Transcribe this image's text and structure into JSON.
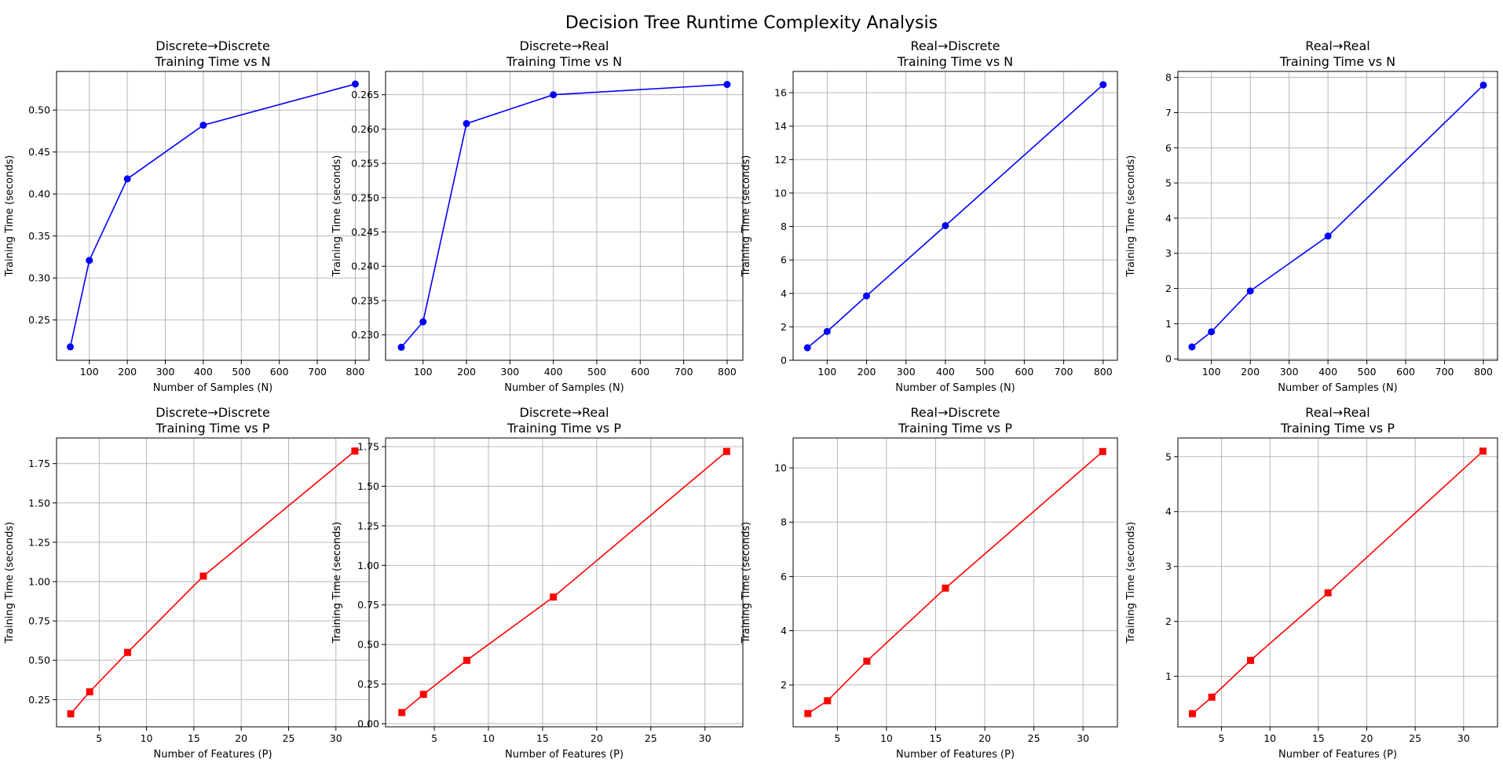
{
  "figure_title": "Decision Tree Runtime Complexity Analysis",
  "chart_data": [
    {
      "type": "line",
      "title": [
        "Discrete→Discrete",
        "Training Time vs N"
      ],
      "xlabel": "Number of Samples (N)",
      "ylabel": "Training Time (seconds)",
      "xlim": [
        13.75,
        836.25
      ],
      "ylim": [
        0.202,
        0.546
      ],
      "xticks": [
        100,
        200,
        300,
        400,
        500,
        600,
        700,
        800
      ],
      "yticks": [
        0.25,
        0.3,
        0.35,
        0.4,
        0.45,
        0.5
      ],
      "tick_decimals": 2,
      "grid": true,
      "color": "#0000ff",
      "marker": "circle",
      "series": [
        {
          "x": [
            50,
            100,
            200,
            400,
            800
          ],
          "y": [
            0.218,
            0.321,
            0.418,
            0.482,
            0.531
          ]
        }
      ]
    },
    {
      "type": "line",
      "title": [
        "Discrete→Real",
        "Training Time vs N"
      ],
      "xlabel": "Number of Samples (N)",
      "ylabel": "Training Time (seconds)",
      "xlim": [
        13.75,
        836.25
      ],
      "ylim": [
        0.2263,
        0.2684
      ],
      "xticks": [
        100,
        200,
        300,
        400,
        500,
        600,
        700,
        800
      ],
      "yticks": [
        0.23,
        0.235,
        0.24,
        0.245,
        0.25,
        0.255,
        0.26,
        0.265
      ],
      "tick_decimals": 3,
      "grid": true,
      "color": "#0000ff",
      "marker": "circle",
      "series": [
        {
          "x": [
            50,
            100,
            200,
            400,
            800
          ],
          "y": [
            0.2282,
            0.2319,
            0.2608,
            0.265,
            0.2665
          ]
        }
      ]
    },
    {
      "type": "line",
      "title": [
        "Real→Discrete",
        "Training Time vs N"
      ],
      "xlabel": "Number of Samples (N)",
      "ylabel": "Training Time (seconds)",
      "xlim": [
        13.75,
        836.25
      ],
      "ylim": [
        0,
        17.27
      ],
      "xticks": [
        100,
        200,
        300,
        400,
        500,
        600,
        700,
        800
      ],
      "yticks": [
        0,
        2,
        4,
        6,
        8,
        10,
        12,
        14,
        16
      ],
      "tick_decimals": 0,
      "grid": true,
      "color": "#0000ff",
      "marker": "circle",
      "series": [
        {
          "x": [
            50,
            100,
            200,
            400,
            800
          ],
          "y": [
            0.75,
            1.72,
            3.85,
            8.05,
            16.48
          ]
        }
      ]
    },
    {
      "type": "line",
      "title": [
        "Real→Real",
        "Training Time vs N"
      ],
      "xlabel": "Number of Samples (N)",
      "ylabel": "Training Time (seconds)",
      "xlim": [
        13.75,
        836.25
      ],
      "ylim": [
        -0.04,
        8.17
      ],
      "xticks": [
        100,
        200,
        300,
        400,
        500,
        600,
        700,
        800
      ],
      "yticks": [
        0,
        1,
        2,
        3,
        4,
        5,
        6,
        7,
        8
      ],
      "tick_decimals": 0,
      "grid": true,
      "color": "#0000ff",
      "marker": "circle",
      "series": [
        {
          "x": [
            50,
            100,
            200,
            400,
            800
          ],
          "y": [
            0.34,
            0.77,
            1.93,
            3.49,
            7.78
          ]
        }
      ]
    },
    {
      "type": "line",
      "title": [
        "Discrete→Discrete",
        "Training Time vs P"
      ],
      "xlabel": "Number of Features (P)",
      "ylabel": "Training Time (seconds)",
      "xlim": [
        0.5,
        33.5
      ],
      "ylim": [
        0.077,
        1.913
      ],
      "xticks": [
        5,
        10,
        15,
        20,
        25,
        30
      ],
      "yticks": [
        0.25,
        0.5,
        0.75,
        1.0,
        1.25,
        1.5,
        1.75
      ],
      "tick_decimals": 2,
      "grid": true,
      "color": "#ff0000",
      "marker": "square",
      "series": [
        {
          "x": [
            2,
            4,
            8,
            16,
            32
          ],
          "y": [
            0.16,
            0.3,
            0.55,
            1.035,
            1.83
          ]
        }
      ]
    },
    {
      "type": "line",
      "title": [
        "Discrete→Real",
        "Training Time vs P"
      ],
      "xlabel": "Number of Features (P)",
      "ylabel": "Training Time (seconds)",
      "xlim": [
        0.5,
        33.5
      ],
      "ylim": [
        -0.02,
        1.805
      ],
      "xticks": [
        5,
        10,
        15,
        20,
        25,
        30
      ],
      "yticks": [
        0.0,
        0.25,
        0.5,
        0.75,
        1.0,
        1.25,
        1.5,
        1.75
      ],
      "tick_decimals": 2,
      "grid": true,
      "color": "#ff0000",
      "marker": "square",
      "series": [
        {
          "x": [
            2,
            4,
            8,
            16,
            32
          ],
          "y": [
            0.07,
            0.185,
            0.4,
            0.8,
            1.72
          ]
        }
      ]
    },
    {
      "type": "line",
      "title": [
        "Real→Discrete",
        "Training Time vs P"
      ],
      "xlabel": "Number of Features (P)",
      "ylabel": "Training Time (seconds)",
      "xlim": [
        0.5,
        33.5
      ],
      "ylim": [
        0.46,
        11.1
      ],
      "xticks": [
        5,
        10,
        15,
        20,
        25,
        30
      ],
      "yticks": [
        2,
        4,
        6,
        8,
        10
      ],
      "tick_decimals": 0,
      "grid": true,
      "color": "#ff0000",
      "marker": "square",
      "series": [
        {
          "x": [
            2,
            4,
            8,
            16,
            32
          ],
          "y": [
            0.95,
            1.42,
            2.88,
            5.57,
            10.6
          ]
        }
      ]
    },
    {
      "type": "line",
      "title": [
        "Real→Real",
        "Training Time vs P"
      ],
      "xlabel": "Number of Features (P)",
      "ylabel": "Training Time (seconds)",
      "xlim": [
        0.5,
        33.5
      ],
      "ylim": [
        0.08,
        5.34
      ],
      "xticks": [
        5,
        10,
        15,
        20,
        25,
        30
      ],
      "yticks": [
        1,
        2,
        3,
        4,
        5
      ],
      "tick_decimals": 0,
      "grid": true,
      "color": "#ff0000",
      "marker": "square",
      "series": [
        {
          "x": [
            2,
            4,
            8,
            16,
            32
          ],
          "y": [
            0.32,
            0.62,
            1.29,
            2.52,
            5.1
          ]
        }
      ]
    }
  ]
}
